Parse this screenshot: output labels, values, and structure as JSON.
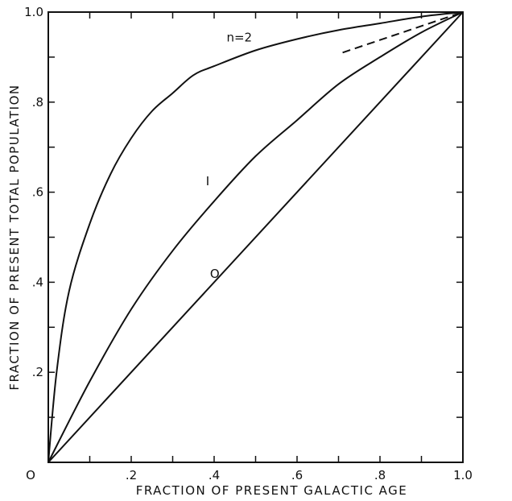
{
  "chart_data": {
    "type": "line",
    "title": "",
    "xlabel": "FRACTION OF PRESENT GALACTIC AGE",
    "ylabel": "FRACTION OF PRESENT TOTAL POPULATION",
    "xlim": [
      0,
      1
    ],
    "ylim": [
      0,
      1
    ],
    "grid": false,
    "origin_label": "O",
    "x_ticks": [
      {
        "value": 0.2,
        "label": ".2"
      },
      {
        "value": 0.4,
        "label": ".4"
      },
      {
        "value": 0.6,
        "label": ".6"
      },
      {
        "value": 0.8,
        "label": ".8"
      },
      {
        "value": 1.0,
        "label": "1.0"
      }
    ],
    "y_ticks": [
      {
        "value": 0.2,
        "label": ".2"
      },
      {
        "value": 0.4,
        "label": ".4"
      },
      {
        "value": 0.6,
        "label": ".6"
      },
      {
        "value": 0.8,
        "label": ".8"
      },
      {
        "value": 1.0,
        "label": "1.0"
      }
    ],
    "series": [
      {
        "name": "n=2",
        "style": "solid",
        "x": [
          0,
          0.02,
          0.05,
          0.1,
          0.15,
          0.2,
          0.25,
          0.3,
          0.35,
          0.4,
          0.5,
          0.6,
          0.7,
          0.8,
          0.9,
          1.0
        ],
        "y": [
          0,
          0.2,
          0.38,
          0.53,
          0.64,
          0.72,
          0.78,
          0.82,
          0.86,
          0.88,
          0.915,
          0.94,
          0.96,
          0.975,
          0.99,
          1.0
        ]
      },
      {
        "name": "I",
        "style": "solid",
        "x": [
          0,
          0.1,
          0.2,
          0.3,
          0.4,
          0.5,
          0.6,
          0.7,
          0.8,
          0.9,
          1.0
        ],
        "y": [
          0,
          0.18,
          0.34,
          0.47,
          0.58,
          0.68,
          0.76,
          0.84,
          0.9,
          0.955,
          1.0
        ]
      },
      {
        "name": "O",
        "style": "solid",
        "x": [
          0,
          1.0
        ],
        "y": [
          0,
          1.0
        ]
      },
      {
        "name": "",
        "style": "dashed",
        "x": [
          0.71,
          1.0
        ],
        "y": [
          0.91,
          1.0
        ]
      }
    ],
    "annotations": [
      {
        "text": "n=2",
        "x": 0.43,
        "y": 0.935
      },
      {
        "text": "I",
        "x": 0.38,
        "y": 0.615
      },
      {
        "text": "O",
        "x": 0.39,
        "y": 0.41
      }
    ]
  }
}
